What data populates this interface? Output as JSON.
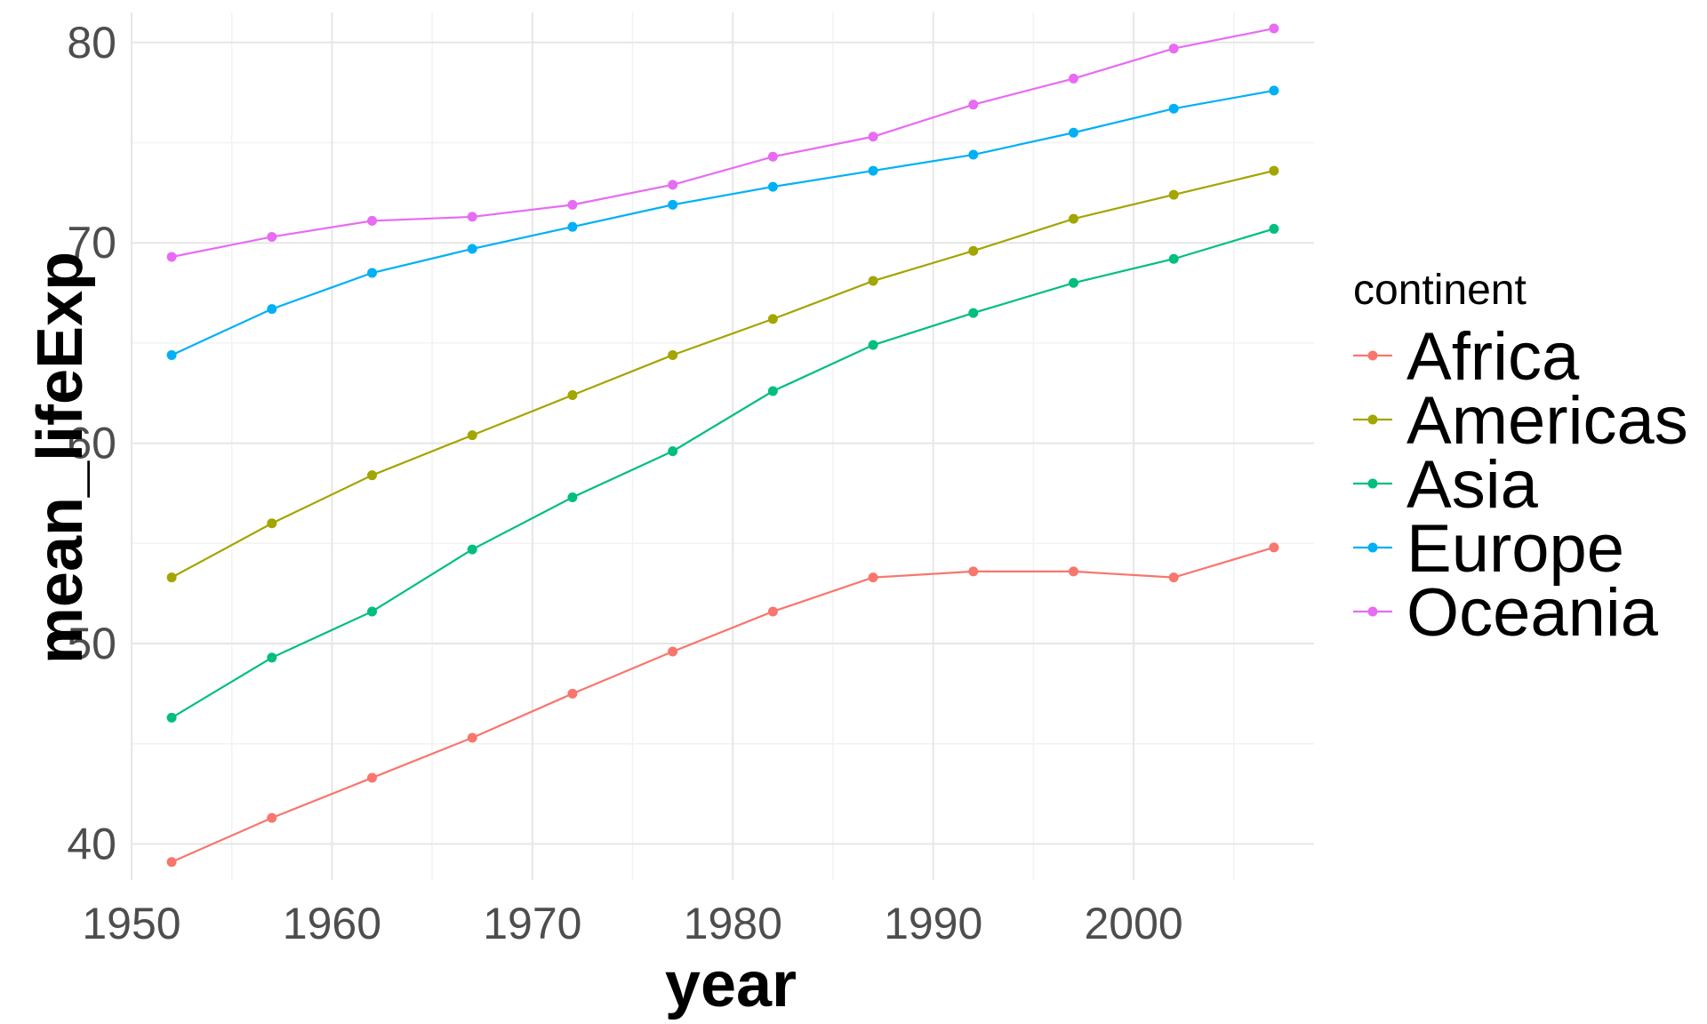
{
  "chart_data": {
    "type": "line",
    "title": "",
    "xlabel": "year",
    "ylabel": "mean_lifeExp",
    "xlim": [
      1950,
      2009
    ],
    "ylim": [
      38.2,
      81.5
    ],
    "x_ticks": [
      1950,
      1960,
      1970,
      1980,
      1990,
      2000
    ],
    "y_ticks": [
      40,
      50,
      60,
      70,
      80
    ],
    "grid": true,
    "legend": {
      "title": "continent",
      "placement": "right"
    },
    "x": [
      1952,
      1957,
      1962,
      1967,
      1972,
      1977,
      1982,
      1987,
      1992,
      1997,
      2002,
      2007
    ],
    "series": [
      {
        "name": "Africa",
        "color": "#F8766D",
        "values": [
          39.1,
          41.3,
          43.3,
          45.3,
          47.5,
          49.6,
          51.6,
          53.3,
          53.6,
          53.6,
          53.3,
          54.8
        ]
      },
      {
        "name": "Americas",
        "color": "#A3A500",
        "values": [
          53.3,
          56.0,
          58.4,
          60.4,
          62.4,
          64.4,
          66.2,
          68.1,
          69.6,
          71.2,
          72.4,
          73.6
        ]
      },
      {
        "name": "Asia",
        "color": "#00BF7D",
        "values": [
          46.3,
          49.3,
          51.6,
          54.7,
          57.3,
          59.6,
          62.6,
          64.9,
          66.5,
          68.0,
          69.2,
          70.7
        ]
      },
      {
        "name": "Europe",
        "color": "#00B0F6",
        "values": [
          64.4,
          66.7,
          68.5,
          69.7,
          70.8,
          71.9,
          72.8,
          73.6,
          74.4,
          75.5,
          76.7,
          77.6
        ]
      },
      {
        "name": "Oceania",
        "color": "#E76BF3",
        "values": [
          69.3,
          70.3,
          71.1,
          71.3,
          71.9,
          72.9,
          74.3,
          75.3,
          76.9,
          78.2,
          79.7,
          80.7
        ]
      }
    ]
  }
}
